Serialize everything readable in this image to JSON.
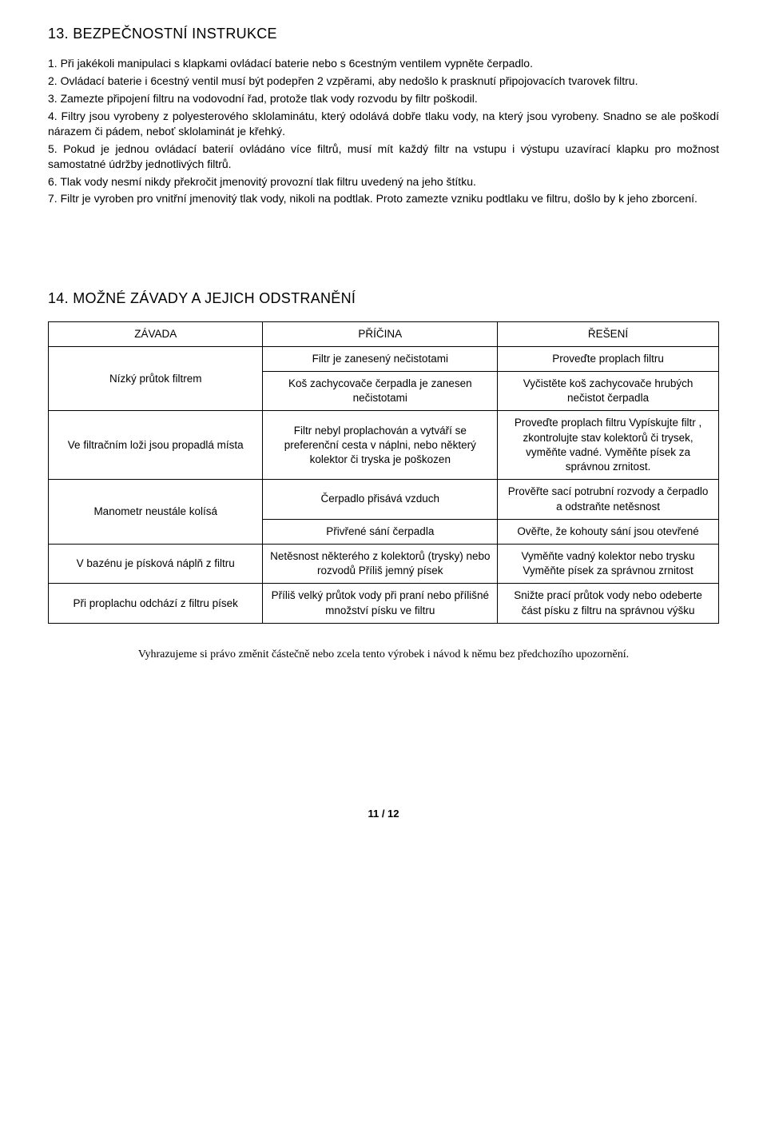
{
  "section13": {
    "heading": "13. BEZPEČNOSTNÍ INSTRUKCE",
    "p1": "1. Při jakékoli manipulaci s klapkami ovládací baterie nebo s 6cestným ventilem vypněte čerpadlo.",
    "p2": "2. Ovládací baterie i 6cestný ventil musí být podepřen 2 vzpěrami, aby nedošlo k prasknutí připojovacích tvarovek filtru.",
    "p3": "3. Zamezte připojení filtru na vodovodní řad, protože tlak vody rozvodu by filtr poškodil.",
    "p4": "4. Filtry jsou vyrobeny z polyesterového sklolaminátu, který odolává dobře tlaku vody, na který jsou vyrobeny. Snadno se ale poškodí nárazem či pádem, neboť sklolaminát je křehký.",
    "p5": "5. Pokud je jednou ovládací baterií ovládáno více filtrů, musí mít každý filtr na vstupu i výstupu uzavírací klapku pro možnost samostatné údržby jednotlivých filtrů.",
    "p6": "6. Tlak vody nesmí nikdy překročit jmenovitý provozní tlak filtru uvedený na jeho štítku.",
    "p7": "7. Filtr je vyroben pro vnitřní jmenovitý tlak vody, nikoli na podtlak. Proto zamezte vzniku podtlaku ve filtru, došlo by k jeho zborcení."
  },
  "section14": {
    "heading": "14. MOŽNÉ ZÁVADY A JEJICH ODSTRANĚNÍ",
    "headers": {
      "c1": "ZÁVADA",
      "c2": "PŘÍČINA",
      "c3": "ŘEŠENÍ"
    },
    "rows": {
      "r1_fault": "Nízký průtok filtrem",
      "r1a_cause": "Filtr je zanesený nečistotami",
      "r1a_sol": "Proveďte proplach filtru",
      "r1b_cause": "Koš zachycovače čerpadla je zanesen nečistotami",
      "r1b_sol": "Vyčistěte koš zachycovače hrubých nečistot čerpadla",
      "r2_fault": "Ve filtračním loži jsou propadlá místa",
      "r2_cause": "Filtr nebyl proplachován a vytváří se preferenční cesta v náplni, nebo některý kolektor či tryska je poškozen",
      "r2_sol": "Proveďte proplach filtru Vypískujte filtr , zkontrolujte stav kolektorů či trysek, vyměňte vadné. Vyměňte písek za správnou zrnitost.",
      "r3_fault": "Manometr neustále kolísá",
      "r3a_cause": "Čerpadlo přisává vzduch",
      "r3a_sol": "Prověřte sací potrubní rozvody a čerpadlo a odstraňte netěsnost",
      "r3b_cause": "Přivřené sání čerpadla",
      "r3b_sol": "Ověřte, že kohouty sání jsou otevřené",
      "r4_fault": "V bazénu je písková náplň z filtru",
      "r4_cause": "Netěsnost některého z kolektorů (trysky) nebo rozvodů Příliš jemný písek",
      "r4_sol": "Vyměňte vadný kolektor nebo trysku Vyměňte písek za správnou zrnitost",
      "r5_fault": "Při proplachu odchází z filtru písek",
      "r5_cause": "Příliš velký průtok vody při praní nebo přílišné množství písku ve filtru",
      "r5_sol": "Snižte prací průtok vody nebo odeberte část písku z filtru na správnou výšku"
    }
  },
  "footerNote": "Vyhrazujeme si právo změnit částečně nebo zcela tento výrobek i návod k němu bez předchozího upozornění.",
  "pageNumber": "11 / 12"
}
